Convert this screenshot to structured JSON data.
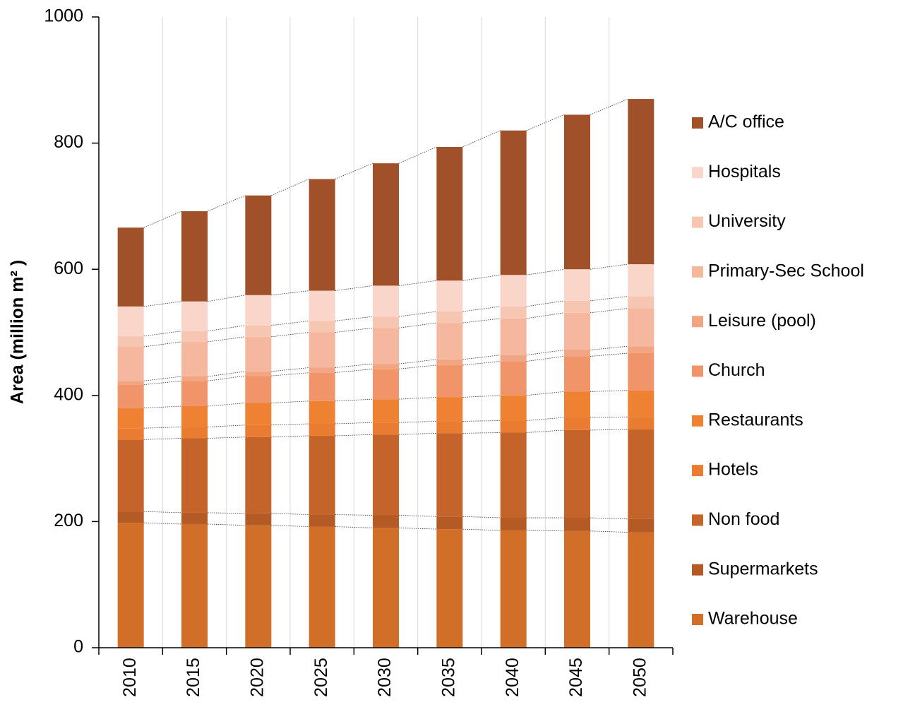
{
  "chart_data": {
    "type": "bar",
    "stacked": true,
    "y_label": "Area (million m² )",
    "categories": [
      "2010",
      "2015",
      "2020",
      "2025",
      "2030",
      "2035",
      "2040",
      "2045",
      "2050"
    ],
    "series": [
      {
        "name": "Warehouse",
        "color": "#d16f28",
        "values": [
          198,
          196,
          194,
          192,
          190,
          188,
          186,
          185,
          183
        ]
      },
      {
        "name": "Supermarkets",
        "color": "#b45a24",
        "values": [
          18,
          18,
          19,
          19,
          20,
          20,
          20,
          21,
          21
        ]
      },
      {
        "name": "Non food",
        "color": "#c5642a",
        "values": [
          114,
          118,
          121,
          125,
          128,
          132,
          135,
          139,
          142
        ]
      },
      {
        "name": "Hotels",
        "color": "#e97c30",
        "values": [
          18,
          18,
          19,
          19,
          19,
          19,
          19,
          20,
          20
        ]
      },
      {
        "name": "Restaurants",
        "color": "#ee8232",
        "values": [
          32,
          33,
          35,
          36,
          37,
          38,
          40,
          41,
          42
        ]
      },
      {
        "name": "Church",
        "color": "#f0956a",
        "values": [
          37,
          40,
          43,
          45,
          48,
          51,
          54,
          56,
          59
        ]
      },
      {
        "name": "Leisure (pool)",
        "color": "#f2a582",
        "values": [
          6,
          7,
          7,
          8,
          8,
          9,
          10,
          10,
          11
        ]
      },
      {
        "name": "Primary-Sec School",
        "color": "#f5b89e",
        "values": [
          54,
          55,
          55,
          56,
          57,
          58,
          58,
          59,
          60
        ]
      },
      {
        "name": "University",
        "color": "#f6c6b2",
        "values": [
          17,
          17,
          18,
          18,
          18,
          18,
          19,
          19,
          19
        ]
      },
      {
        "name": "Hospitals",
        "color": "#f9d6c9",
        "values": [
          47,
          47,
          48,
          48,
          49,
          49,
          50,
          50,
          51
        ]
      },
      {
        "name": "A/C office",
        "color": "#a0512a",
        "values": [
          125,
          143,
          158,
          177,
          194,
          212,
          229,
          245,
          262
        ]
      }
    ],
    "ylim": [
      0,
      1000
    ],
    "yticks": [
      0,
      200,
      400,
      600,
      800,
      1000
    ],
    "grid": true
  }
}
